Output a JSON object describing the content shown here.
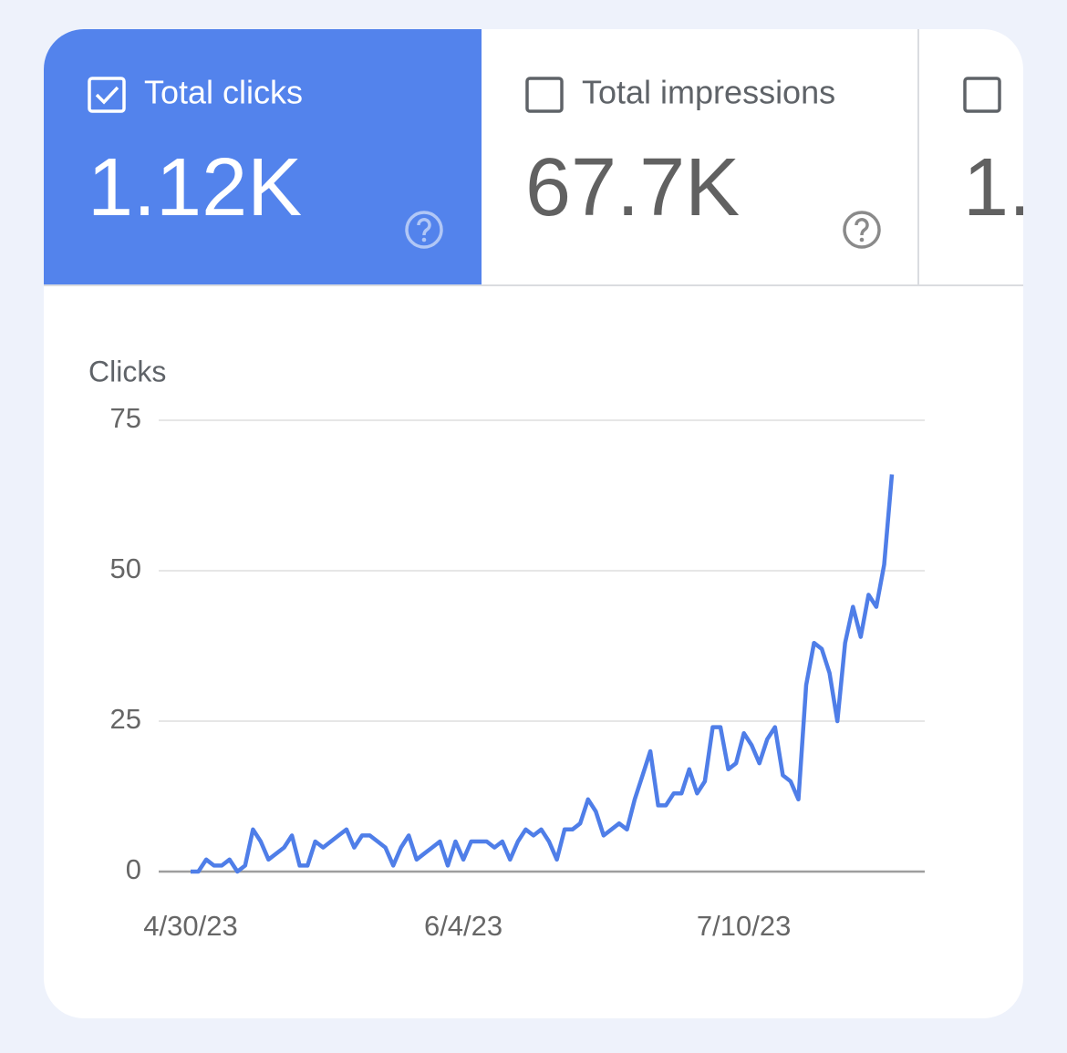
{
  "cards": [
    {
      "label": "Total clicks",
      "value": "1.12K",
      "checked": true
    },
    {
      "label": "Total impressions",
      "value": "67.7K",
      "checked": false
    },
    {
      "value": "1.",
      "checked": false
    }
  ],
  "chart_data": {
    "type": "line",
    "y_label": "Clicks",
    "color": "#4f7ee8",
    "grid": true,
    "categories": [
      "4/30/23",
      null,
      null,
      null,
      null,
      null,
      null,
      null,
      null,
      null,
      null,
      null,
      null,
      null,
      null,
      null,
      null,
      null,
      null,
      null,
      null,
      null,
      null,
      null,
      null,
      null,
      null,
      null,
      null,
      null,
      null,
      null,
      null,
      null,
      null,
      "6/4/23",
      null,
      null,
      null,
      null,
      null,
      null,
      null,
      null,
      null,
      null,
      null,
      null,
      null,
      null,
      null,
      null,
      null,
      null,
      null,
      null,
      null,
      null,
      null,
      null,
      null,
      null,
      null,
      null,
      null,
      null,
      null,
      null,
      null,
      null,
      null,
      "7/10/23",
      null,
      null,
      null,
      null,
      null,
      null,
      null,
      null,
      null,
      null,
      null,
      null,
      null,
      null,
      null,
      null,
      null,
      null,
      null
    ],
    "values": [
      0,
      0,
      2,
      1,
      1,
      2,
      0,
      1,
      7,
      5,
      2,
      3,
      4,
      6,
      1,
      1,
      5,
      4,
      5,
      6,
      7,
      4,
      6,
      6,
      5,
      4,
      1,
      4,
      6,
      2,
      3,
      4,
      5,
      1,
      5,
      2,
      5,
      5,
      5,
      4,
      5,
      2,
      5,
      7,
      6,
      7,
      5,
      2,
      7,
      7,
      8,
      12,
      10,
      6,
      7,
      8,
      7,
      12,
      16,
      20,
      11,
      11,
      13,
      13,
      17,
      13,
      15,
      24,
      24,
      17,
      18,
      23,
      21,
      18,
      22,
      24,
      16,
      15,
      12,
      31,
      38,
      37,
      33,
      25,
      38,
      44,
      39,
      46,
      44,
      51,
      66
    ],
    "ylim": [
      0,
      75
    ],
    "yticks": [
      0,
      25,
      50,
      75
    ]
  }
}
